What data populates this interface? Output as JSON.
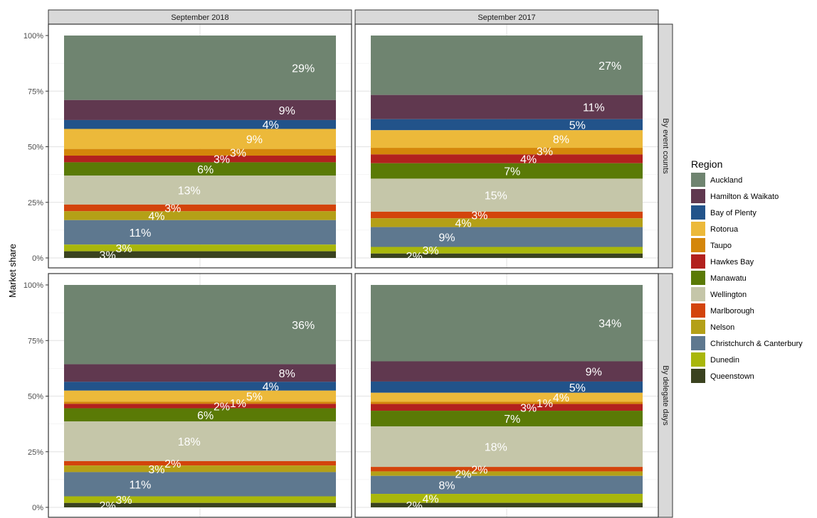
{
  "chart_data": {
    "type": "bar",
    "stacked": true,
    "ylabel": "Market share",
    "y_ticks": [
      "0%",
      "25%",
      "50%",
      "75%",
      "100%"
    ],
    "ylim": [
      0,
      1
    ],
    "grid": true,
    "legend": {
      "title": "Region",
      "position": "right"
    },
    "columns": [
      "September 2018",
      "September 2017"
    ],
    "rows": [
      "By event counts",
      "By delegate days"
    ],
    "regions": [
      {
        "name": "Auckland",
        "color": "#6f8470"
      },
      {
        "name": "Hamilton & Waikato",
        "color": "#60384f"
      },
      {
        "name": "Bay of Plenty",
        "color": "#22538a"
      },
      {
        "name": "Rotorua",
        "color": "#ecb93a"
      },
      {
        "name": "Taupo",
        "color": "#d4860a"
      },
      {
        "name": "Hawkes Bay",
        "color": "#b2211e"
      },
      {
        "name": "Manawatu",
        "color": "#5a7a06"
      },
      {
        "name": "Wellington",
        "color": "#c5c6a9"
      },
      {
        "name": "Marlborough",
        "color": "#d3440c"
      },
      {
        "name": "Nelson",
        "color": "#b4a017"
      },
      {
        "name": "Christchurch & Canterbury",
        "color": "#5e788f"
      },
      {
        "name": "Dunedin",
        "color": "#a9b70b"
      },
      {
        "name": "Queenstown",
        "color": "#3a421f"
      }
    ],
    "panels": [
      {
        "column": "September 2018",
        "row": "By event counts",
        "values": [
          0.29,
          0.09,
          0.04,
          0.09,
          0.03,
          0.03,
          0.06,
          0.13,
          0.03,
          0.04,
          0.11,
          0.03,
          0.03
        ],
        "labels": [
          "29%",
          "9%",
          "4%",
          "9%",
          "3%",
          "3%",
          "6%",
          "13%",
          "3%",
          "4%",
          "11%",
          "3%",
          "3%"
        ]
      },
      {
        "column": "September 2017",
        "row": "By event counts",
        "values": [
          0.27,
          0.11,
          0.05,
          0.08,
          0.03,
          0.04,
          0.07,
          0.15,
          0.03,
          0.04,
          0.09,
          0.03,
          0.02
        ],
        "labels": [
          "27%",
          "11%",
          "5%",
          "8%",
          "3%",
          "4%",
          "7%",
          "15%",
          "3%",
          "4%",
          "9%",
          "3%",
          "2%"
        ]
      },
      {
        "column": "September 2018",
        "row": "By delegate days",
        "values": [
          0.36,
          0.08,
          0.04,
          0.05,
          0.01,
          0.02,
          0.06,
          0.18,
          0.02,
          0.03,
          0.11,
          0.03,
          0.02
        ],
        "labels": [
          "36%",
          "8%",
          "4%",
          "5%",
          "1%",
          "2%",
          "6%",
          "18%",
          "2%",
          "3%",
          "11%",
          "3%",
          "2%"
        ]
      },
      {
        "column": "September 2017",
        "row": "By delegate days",
        "values": [
          0.34,
          0.09,
          0.05,
          0.04,
          0.01,
          0.03,
          0.07,
          0.18,
          0.02,
          0.02,
          0.08,
          0.04,
          0.02
        ],
        "labels": [
          "34%",
          "9%",
          "5%",
          "4%",
          "1%",
          "3%",
          "7%",
          "18%",
          "2%",
          "2%",
          "8%",
          "4%",
          "2%"
        ]
      }
    ]
  }
}
